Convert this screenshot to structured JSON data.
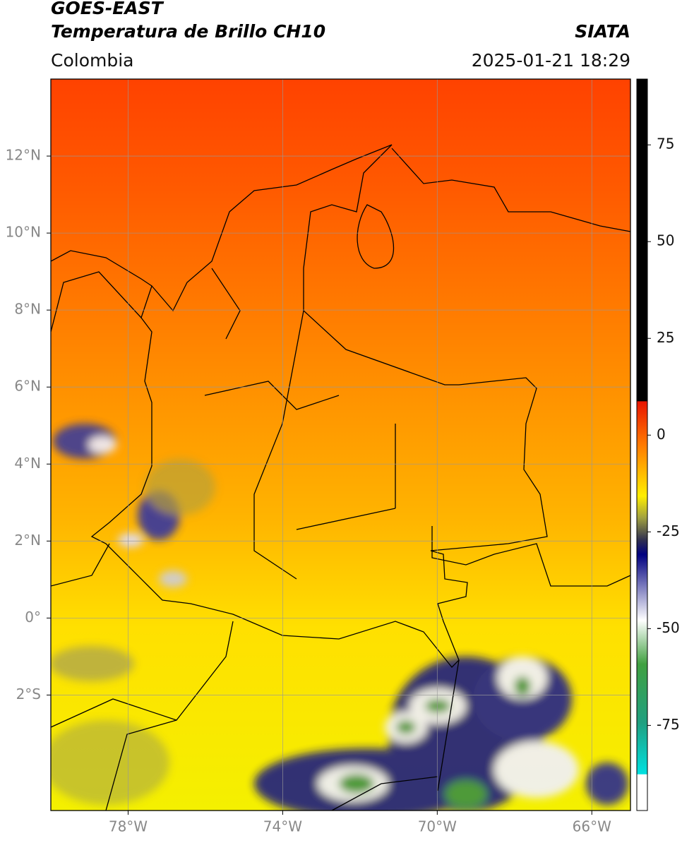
{
  "header": {
    "title": "GOES-EAST",
    "subtitle": "Temperatura de Brillo CH10",
    "source": "SIATA",
    "region": "Colombia",
    "datetime": "2025-01-21 18:29"
  },
  "map": {
    "lonlim": [
      -80,
      -65
    ],
    "latlim": [
      -5,
      14
    ],
    "grid": true,
    "lonticks": [
      {
        "value": -78,
        "label": "78°W"
      },
      {
        "value": -74,
        "label": "74°W"
      },
      {
        "value": -70,
        "label": "70°W"
      },
      {
        "value": -66,
        "label": "66°W"
      }
    ],
    "latticks": [
      {
        "value": 12,
        "label": "12°N"
      },
      {
        "value": 10,
        "label": "10°N"
      },
      {
        "value": 8,
        "label": "8°N"
      },
      {
        "value": 6,
        "label": "6°N"
      },
      {
        "value": 4,
        "label": "4°N"
      },
      {
        "value": 2,
        "label": "2°N"
      },
      {
        "value": 0,
        "label": "0°"
      },
      {
        "value": -2,
        "label": "2°S"
      }
    ]
  },
  "colorbar": {
    "lim": [
      -97,
      92
    ],
    "ticks": [
      75,
      50,
      25,
      0,
      -25,
      -50,
      -75
    ]
  }
}
